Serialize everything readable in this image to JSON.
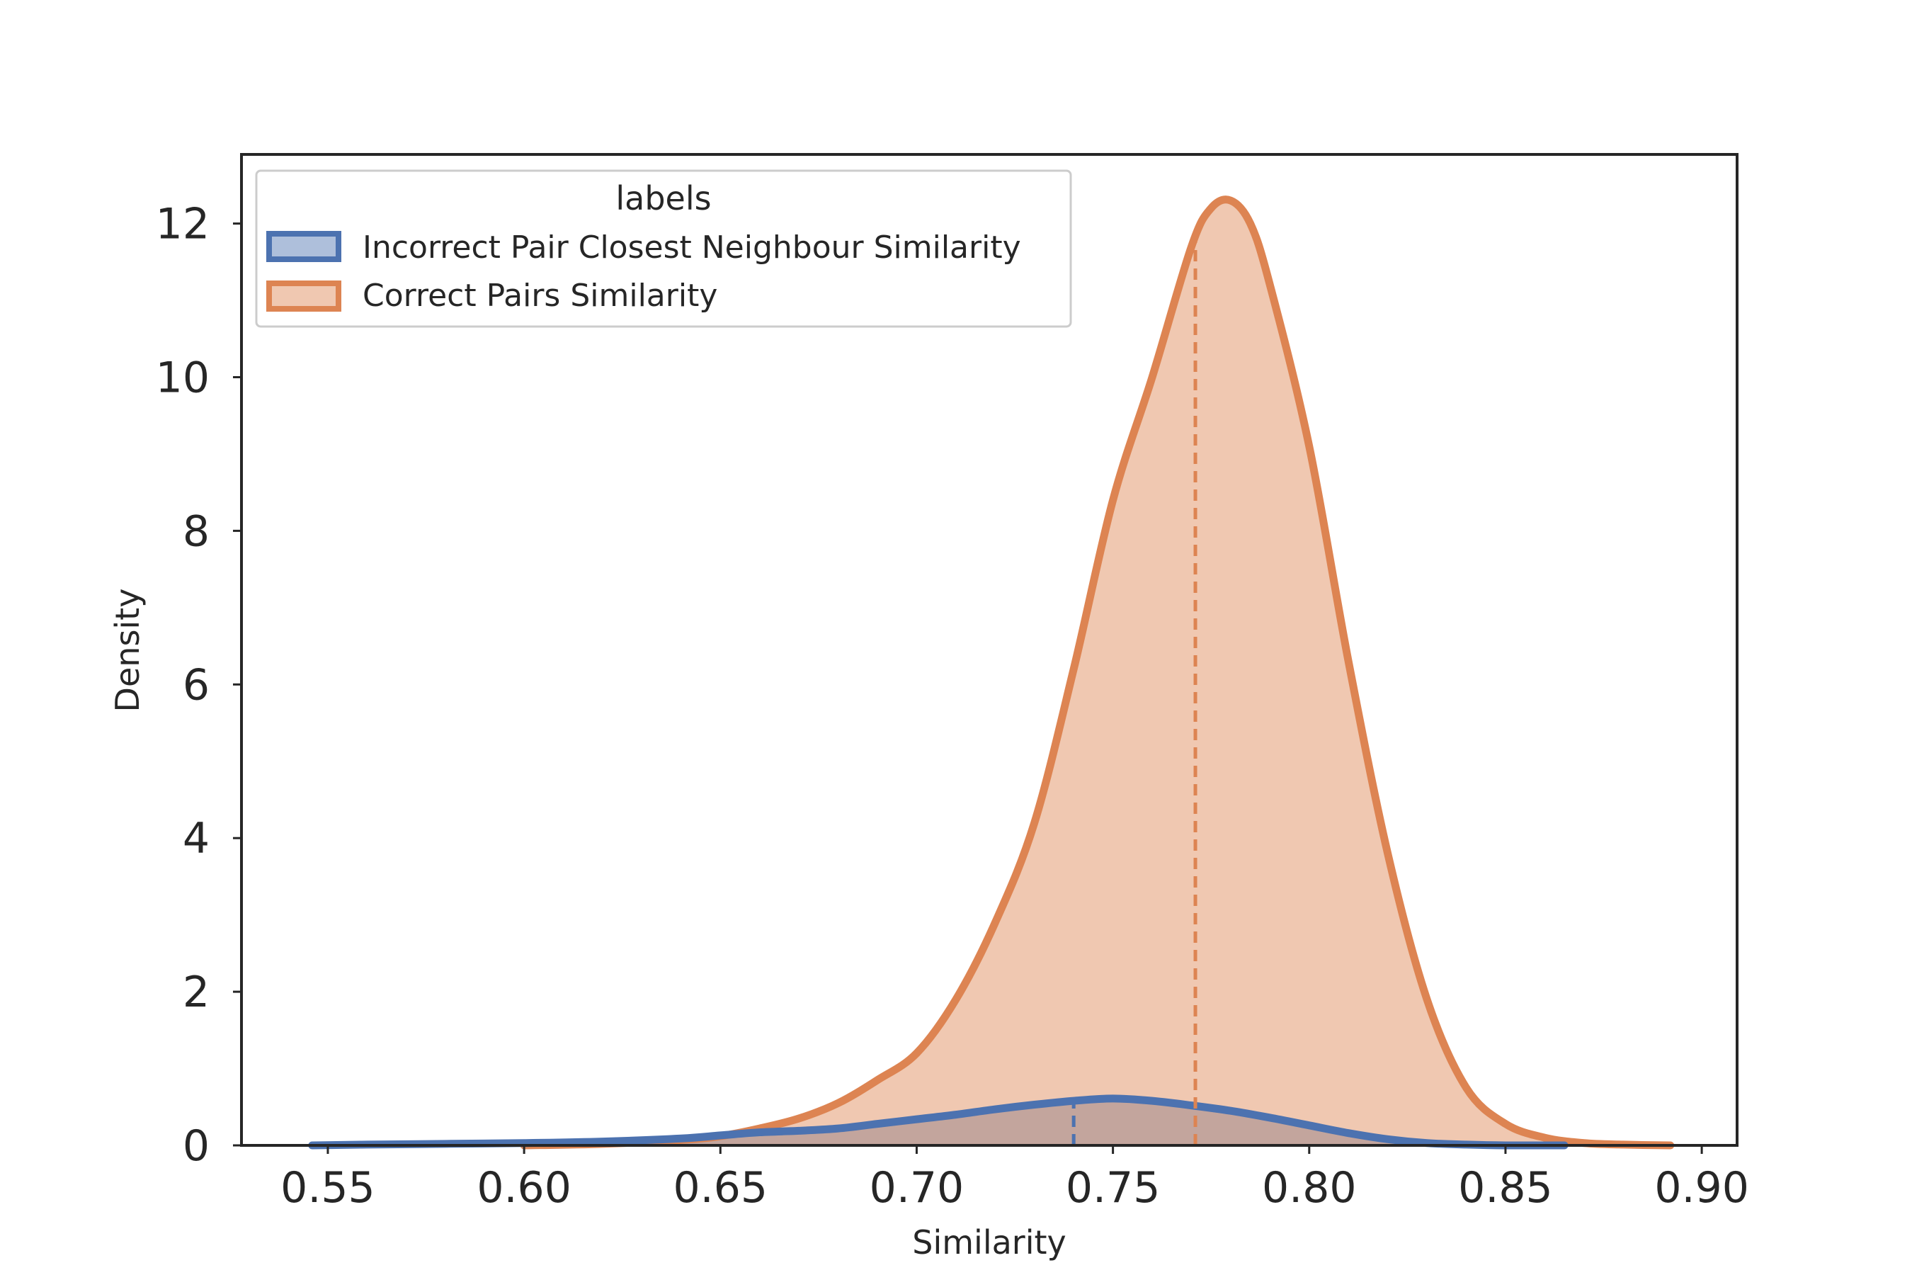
{
  "chart_data": {
    "type": "area",
    "xlabel": "Similarity",
    "ylabel": "Density",
    "xlim": [
      0.528,
      0.909
    ],
    "ylim": [
      0,
      12.9
    ],
    "xticks": [
      "0.55",
      "0.60",
      "0.65",
      "0.70",
      "0.75",
      "0.80",
      "0.85",
      "0.90"
    ],
    "yticks": [
      "0",
      "2",
      "4",
      "6",
      "8",
      "10",
      "12"
    ],
    "grid": false,
    "legend": {
      "title": "labels",
      "placement": "top-left"
    },
    "series": [
      {
        "name": "Incorrect Pair Closest Neighbour Similarity",
        "color": "#4c72b0",
        "mean_line": 0.74,
        "x": [
          0.546,
          0.56,
          0.58,
          0.6,
          0.62,
          0.64,
          0.65,
          0.66,
          0.67,
          0.68,
          0.69,
          0.7,
          0.71,
          0.72,
          0.73,
          0.74,
          0.75,
          0.76,
          0.77,
          0.78,
          0.79,
          0.8,
          0.81,
          0.82,
          0.83,
          0.84,
          0.85,
          0.865
        ],
        "y": [
          0.0,
          0.01,
          0.02,
          0.03,
          0.05,
          0.09,
          0.13,
          0.17,
          0.19,
          0.22,
          0.28,
          0.34,
          0.4,
          0.47,
          0.53,
          0.58,
          0.61,
          0.58,
          0.52,
          0.45,
          0.36,
          0.26,
          0.16,
          0.08,
          0.03,
          0.01,
          0.0,
          0.0
        ]
      },
      {
        "name": "Correct Pairs Similarity",
        "color": "#dd8452",
        "mean_line": 0.771,
        "x": [
          0.6,
          0.62,
          0.64,
          0.65,
          0.66,
          0.67,
          0.68,
          0.69,
          0.7,
          0.71,
          0.72,
          0.73,
          0.74,
          0.75,
          0.76,
          0.77,
          0.775,
          0.78,
          0.785,
          0.79,
          0.8,
          0.81,
          0.82,
          0.83,
          0.84,
          0.85,
          0.86,
          0.87,
          0.88,
          0.892
        ],
        "y": [
          0.0,
          0.02,
          0.07,
          0.12,
          0.22,
          0.35,
          0.55,
          0.85,
          1.2,
          1.9,
          2.9,
          4.2,
          6.2,
          8.4,
          10.0,
          11.7,
          12.2,
          12.3,
          12.0,
          11.2,
          9.1,
          6.3,
          3.8,
          1.9,
          0.75,
          0.28,
          0.1,
          0.03,
          0.01,
          0.0
        ]
      }
    ]
  }
}
